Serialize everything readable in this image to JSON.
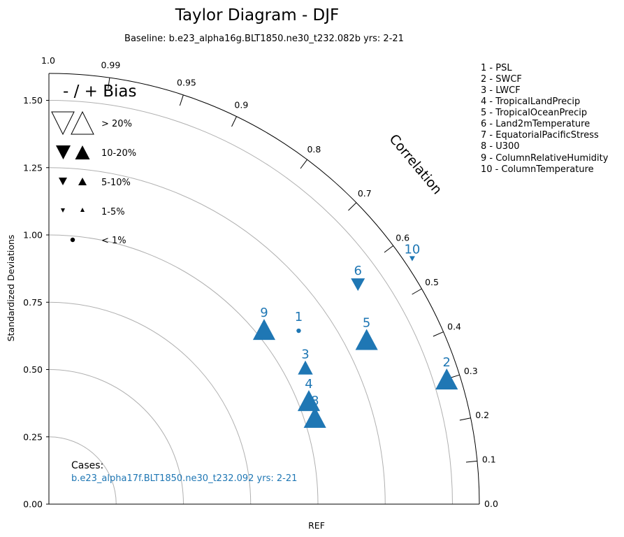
{
  "title": "Taylor Diagram - DJF",
  "subtitle": "Baseline: b.e23_alpha16g.BLT1850.ne30_t232.082b  yrs: 2-21",
  "ylabel": "Standardized Deviations",
  "xlabel": "REF",
  "arc_label": "Correlation",
  "bias_legend": {
    "title": "- / + Bias",
    "entries": [
      "> 20%",
      "10-20%",
      "5-10%",
      "1-5%",
      "< 1%"
    ]
  },
  "variable_legend": [
    "1 - PSL",
    "2 - SWCF",
    "3 - LWCF",
    "4 - TropicalLandPrecip",
    "5 - TropicalOceanPrecip",
    "6 - Land2mTemperature",
    "7 - EquatorialPacificStress",
    "8 - U300",
    "9 - ColumnRelativeHumidity",
    "10 - ColumnTemperature"
  ],
  "cases": {
    "label": "Cases:",
    "name": "b.e23_alpha17f.BLT1850.ne30_t232.092  yrs: 2-21"
  },
  "colors": {
    "case": "#1f77b4",
    "grid": "#b0b0b0",
    "axis": "#000000"
  },
  "chart_data": {
    "type": "taylor",
    "ylim": [
      0,
      1.6
    ],
    "std_ticks": [
      "0.00",
      "0.25",
      "0.50",
      "0.75",
      "1.00",
      "1.25",
      "1.50"
    ],
    "std_tick_values": [
      0,
      0.25,
      0.5,
      0.75,
      1.0,
      1.25,
      1.5
    ],
    "ref_circles": [
      0.25,
      0.5,
      0.75,
      1.0,
      1.25,
      1.5
    ],
    "corr_ticks": [
      {
        "value": 0.0,
        "label": "0.0"
      },
      {
        "value": 0.1,
        "label": "0.1"
      },
      {
        "value": 0.2,
        "label": "0.2"
      },
      {
        "value": 0.3,
        "label": "0.3"
      },
      {
        "value": 0.4,
        "label": "0.4"
      },
      {
        "value": 0.5,
        "label": "0.5"
      },
      {
        "value": 0.6,
        "label": "0.6"
      },
      {
        "value": 0.7,
        "label": "0.7"
      },
      {
        "value": 0.8,
        "label": "0.8"
      },
      {
        "value": 0.9,
        "label": "0.9"
      },
      {
        "value": 0.95,
        "label": "0.95"
      },
      {
        "value": 0.99,
        "label": "0.99"
      },
      {
        "value": 1.0,
        "label": "1.0"
      }
    ],
    "points": [
      {
        "id": "1",
        "corr": 0.57,
        "std": 1.13,
        "bias": "< 1%",
        "sign": "+"
      },
      {
        "id": "2",
        "corr": 0.3,
        "std": 1.55,
        "bias": "10-20%",
        "sign": "+"
      },
      {
        "id": "3",
        "corr": 0.47,
        "std": 1.08,
        "bias": "5-10%",
        "sign": "+"
      },
      {
        "id": "4",
        "corr": 0.37,
        "std": 1.04,
        "bias": "10-20%",
        "sign": "+"
      },
      {
        "id": "5",
        "corr": 0.46,
        "std": 1.33,
        "bias": "10-20%",
        "sign": "+"
      },
      {
        "id": "6",
        "corr": 0.58,
        "std": 1.41,
        "bias": "5-10%",
        "sign": "-"
      },
      {
        "id": "8",
        "corr": 0.31,
        "std": 1.04,
        "bias": "10-20%",
        "sign": "+"
      },
      {
        "id": "9",
        "corr": 0.63,
        "std": 1.03,
        "bias": "10-20%",
        "sign": "+"
      },
      {
        "id": "10",
        "corr": 0.56,
        "std": 1.63,
        "bias": "1-5%",
        "sign": "-"
      }
    ]
  }
}
